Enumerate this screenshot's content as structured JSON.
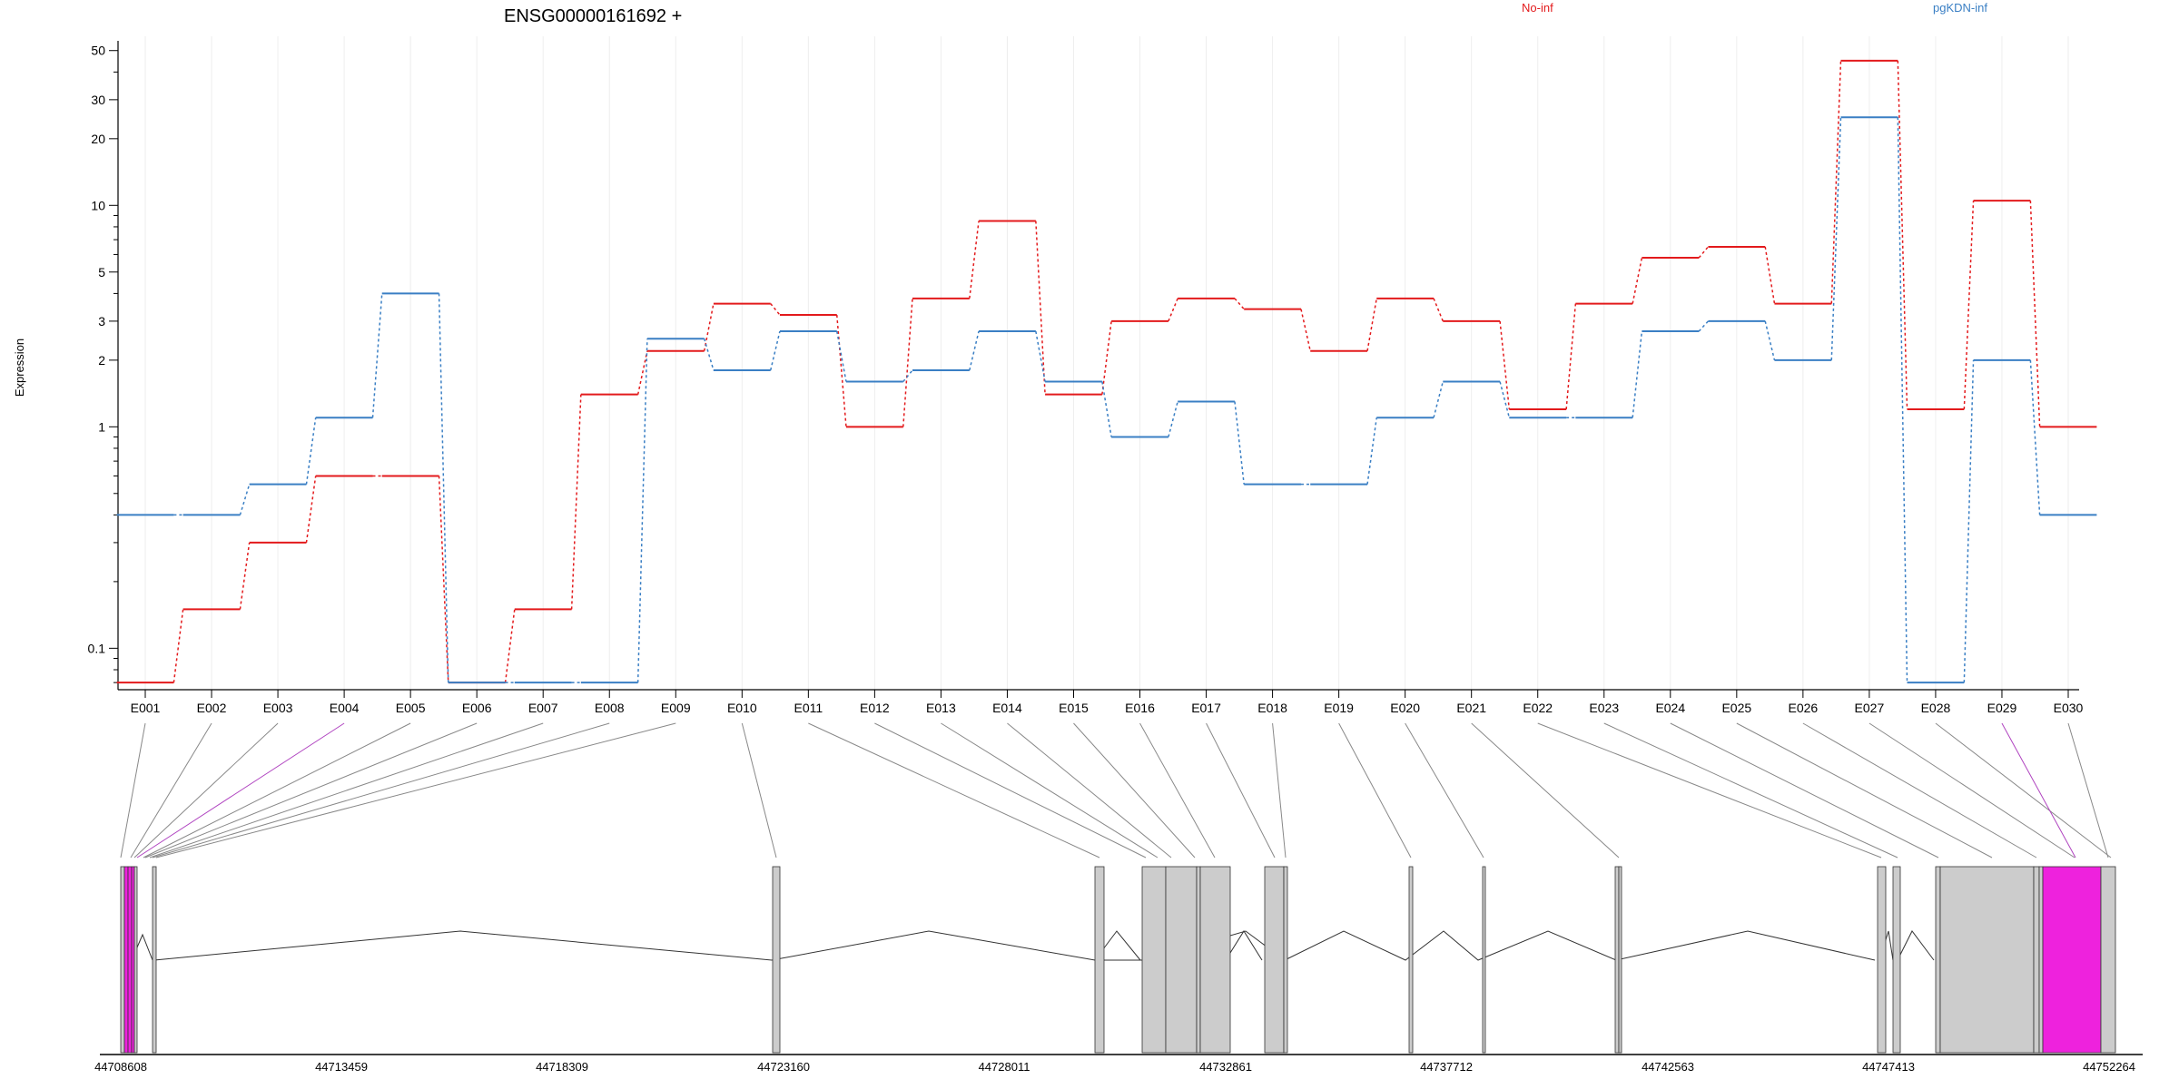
{
  "title": "ENSG00000161692 +",
  "colors": {
    "no_inf": "#e31a1c",
    "pgkdn_inf": "#3a7fc4",
    "exon_fill": "#cccccc",
    "highlight": "#ee22dd"
  },
  "chart_data": {
    "type": "line",
    "title": "ENSG00000161692 +",
    "ylabel": "Expression",
    "yscale": "log",
    "yticks": [
      "0.1",
      "1",
      "2",
      "3",
      "5",
      "10",
      "20",
      "30",
      "50"
    ],
    "categories": [
      "E001",
      "E002",
      "E003",
      "E004",
      "E005",
      "E006",
      "E007",
      "E008",
      "E009",
      "E010",
      "E011",
      "E012",
      "E013",
      "E014",
      "E015",
      "E016",
      "E017",
      "E018",
      "E019",
      "E020",
      "E021",
      "E022",
      "E023",
      "E024",
      "E025",
      "E026",
      "E027",
      "E028",
      "E029",
      "E030"
    ],
    "series": [
      {
        "name": "No-inf",
        "color": "#e31a1c",
        "values": [
          0.07,
          0.15,
          0.3,
          0.6,
          0.6,
          0.07,
          0.15,
          1.4,
          2.2,
          3.6,
          3.2,
          1.0,
          3.8,
          8.5,
          1.4,
          3.0,
          3.8,
          3.4,
          2.2,
          3.8,
          3.0,
          1.2,
          3.6,
          5.8,
          6.5,
          3.6,
          45,
          1.2,
          10.5,
          1.0
        ]
      },
      {
        "name": "pgKDN-inf",
        "color": "#3a7fc4",
        "values": [
          0.4,
          0.4,
          0.55,
          1.1,
          4.0,
          0.07,
          0.07,
          0.07,
          2.5,
          1.8,
          2.7,
          1.6,
          1.8,
          2.7,
          1.6,
          0.9,
          1.3,
          0.55,
          0.55,
          1.1,
          1.6,
          1.1,
          1.1,
          2.7,
          3.0,
          2.0,
          25,
          0.07,
          2.0,
          0.4
        ]
      }
    ],
    "genome_ticks": [
      "44708608",
      "44713459",
      "44718309",
      "44723160",
      "44728011",
      "44732861",
      "44737712",
      "44742563",
      "44747413",
      "44752264"
    ]
  }
}
